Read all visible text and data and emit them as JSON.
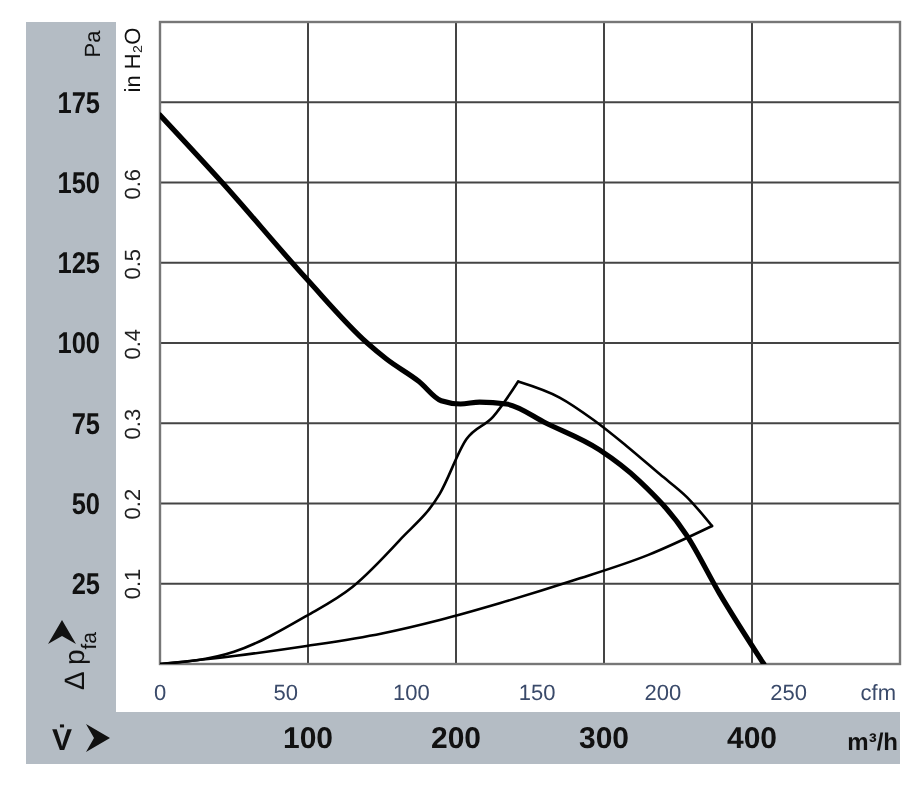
{
  "chart_data": {
    "type": "line",
    "xlabel": "m³/h",
    "ylabel": "Pa",
    "y2label": "in H₂O",
    "x2label": "cfm",
    "xlim": [
      0,
      500
    ],
    "xticks": [
      100,
      200,
      300,
      400
    ],
    "ylim": [
      0,
      200
    ],
    "yticks": [
      25,
      50,
      75,
      100,
      125,
      150,
      175
    ],
    "x2lim": [
      0,
      294.3
    ],
    "x2ticks": [
      0,
      50,
      100,
      150,
      200,
      250
    ],
    "y2lim": [
      0,
      0.803
    ],
    "y2ticks": [
      0.1,
      0.2,
      0.3,
      0.4,
      0.5,
      0.6
    ],
    "grid": true,
    "marker": "none",
    "line_style": "solid",
    "annotations": [
      "Δ p$_{fa}$",
      "V̇"
    ],
    "series": [
      {
        "color": "#000000",
        "x": [
          0,
          42,
          99,
          140,
          153,
          175,
          190,
          203,
          216,
          234,
          261,
          297,
          324,
          356,
          378,
          408
        ],
        "values": [
          171,
          150,
          120,
          100,
          95,
          88,
          82,
          81,
          81.6,
          81,
          75,
          66.7,
          57,
          40,
          22,
          0
        ]
      },
      {
        "color": "#000000",
        "x": [
          0,
          50,
          99,
          150,
          189,
          230,
          279,
          330,
          373
        ],
        "values": [
          0,
          2.5,
          5.6,
          9.5,
          13.7,
          19,
          26,
          34,
          43
        ]
      },
      {
        "color": "#000000",
        "x": [
          242,
          270,
          293,
          315,
          338,
          356,
          373
        ],
        "values": [
          88,
          83,
          76,
          68,
          59,
          52,
          43
        ]
      },
      {
        "color": "#000000",
        "x": [
          0,
          50,
          99,
          130,
          162,
          189,
          207,
          225,
          242
        ],
        "values": [
          0,
          3.8,
          15,
          24,
          38.6,
          53,
          70,
          77,
          88
        ]
      }
    ]
  }
}
